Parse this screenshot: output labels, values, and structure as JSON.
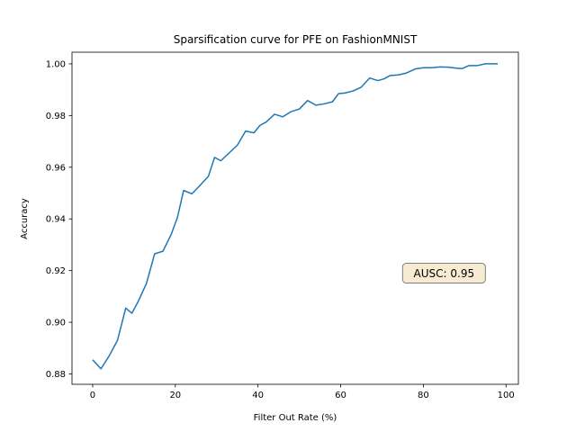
{
  "chart_data": {
    "type": "line",
    "title": "Sparsification curve for PFE on FashionMNIST",
    "xlabel": "Filter Out Rate (%)",
    "ylabel": "Accuracy",
    "xlim": [
      -5,
      103
    ],
    "ylim": [
      0.876,
      1.0045
    ],
    "xticks": [
      0,
      20,
      40,
      60,
      80,
      100
    ],
    "xtick_labels": [
      "0",
      "20",
      "40",
      "60",
      "80",
      "100"
    ],
    "yticks": [
      0.88,
      0.9,
      0.92,
      0.94,
      0.96,
      0.98,
      1.0
    ],
    "ytick_labels": [
      "0.88",
      "0.90",
      "0.92",
      "0.94",
      "0.96",
      "0.98",
      "1.00"
    ],
    "grid": false,
    "line_color": "#1f77b4",
    "annotation": {
      "text": "AUSC: 0.95",
      "x": 85,
      "y": 0.919,
      "face_color": "#f7ecd2",
      "edge_color": "#7f7f7f"
    },
    "series": [
      {
        "x": [
          0,
          2,
          4,
          6,
          8,
          9.5,
          11,
          13,
          15,
          17,
          19,
          20.5,
          22,
          24,
          26,
          28,
          29.5,
          31,
          33,
          35,
          37,
          39,
          40.5,
          42,
          44,
          46,
          48,
          50,
          52,
          54,
          56,
          58,
          59.5,
          61,
          63,
          65,
          67,
          69,
          70.5,
          72,
          74,
          76,
          78,
          80,
          82,
          84,
          86,
          88,
          89.5,
          91,
          93,
          95,
          97,
          98
        ],
        "y": [
          0.8855,
          0.882,
          0.887,
          0.893,
          0.9055,
          0.9035,
          0.908,
          0.915,
          0.9265,
          0.9275,
          0.934,
          0.9405,
          0.951,
          0.9497,
          0.953,
          0.9565,
          0.9638,
          0.9625,
          0.9655,
          0.9685,
          0.974,
          0.9733,
          0.9762,
          0.9775,
          0.9805,
          0.9795,
          0.9815,
          0.9825,
          0.9858,
          0.984,
          0.9845,
          0.9853,
          0.9885,
          0.9887,
          0.9895,
          0.991,
          0.9945,
          0.9935,
          0.9942,
          0.9955,
          0.9957,
          0.9965,
          0.998,
          0.9985,
          0.9985,
          0.9988,
          0.9987,
          0.9983,
          0.9982,
          0.9993,
          0.9993,
          1.0,
          1.0,
          1.0
        ]
      }
    ]
  }
}
